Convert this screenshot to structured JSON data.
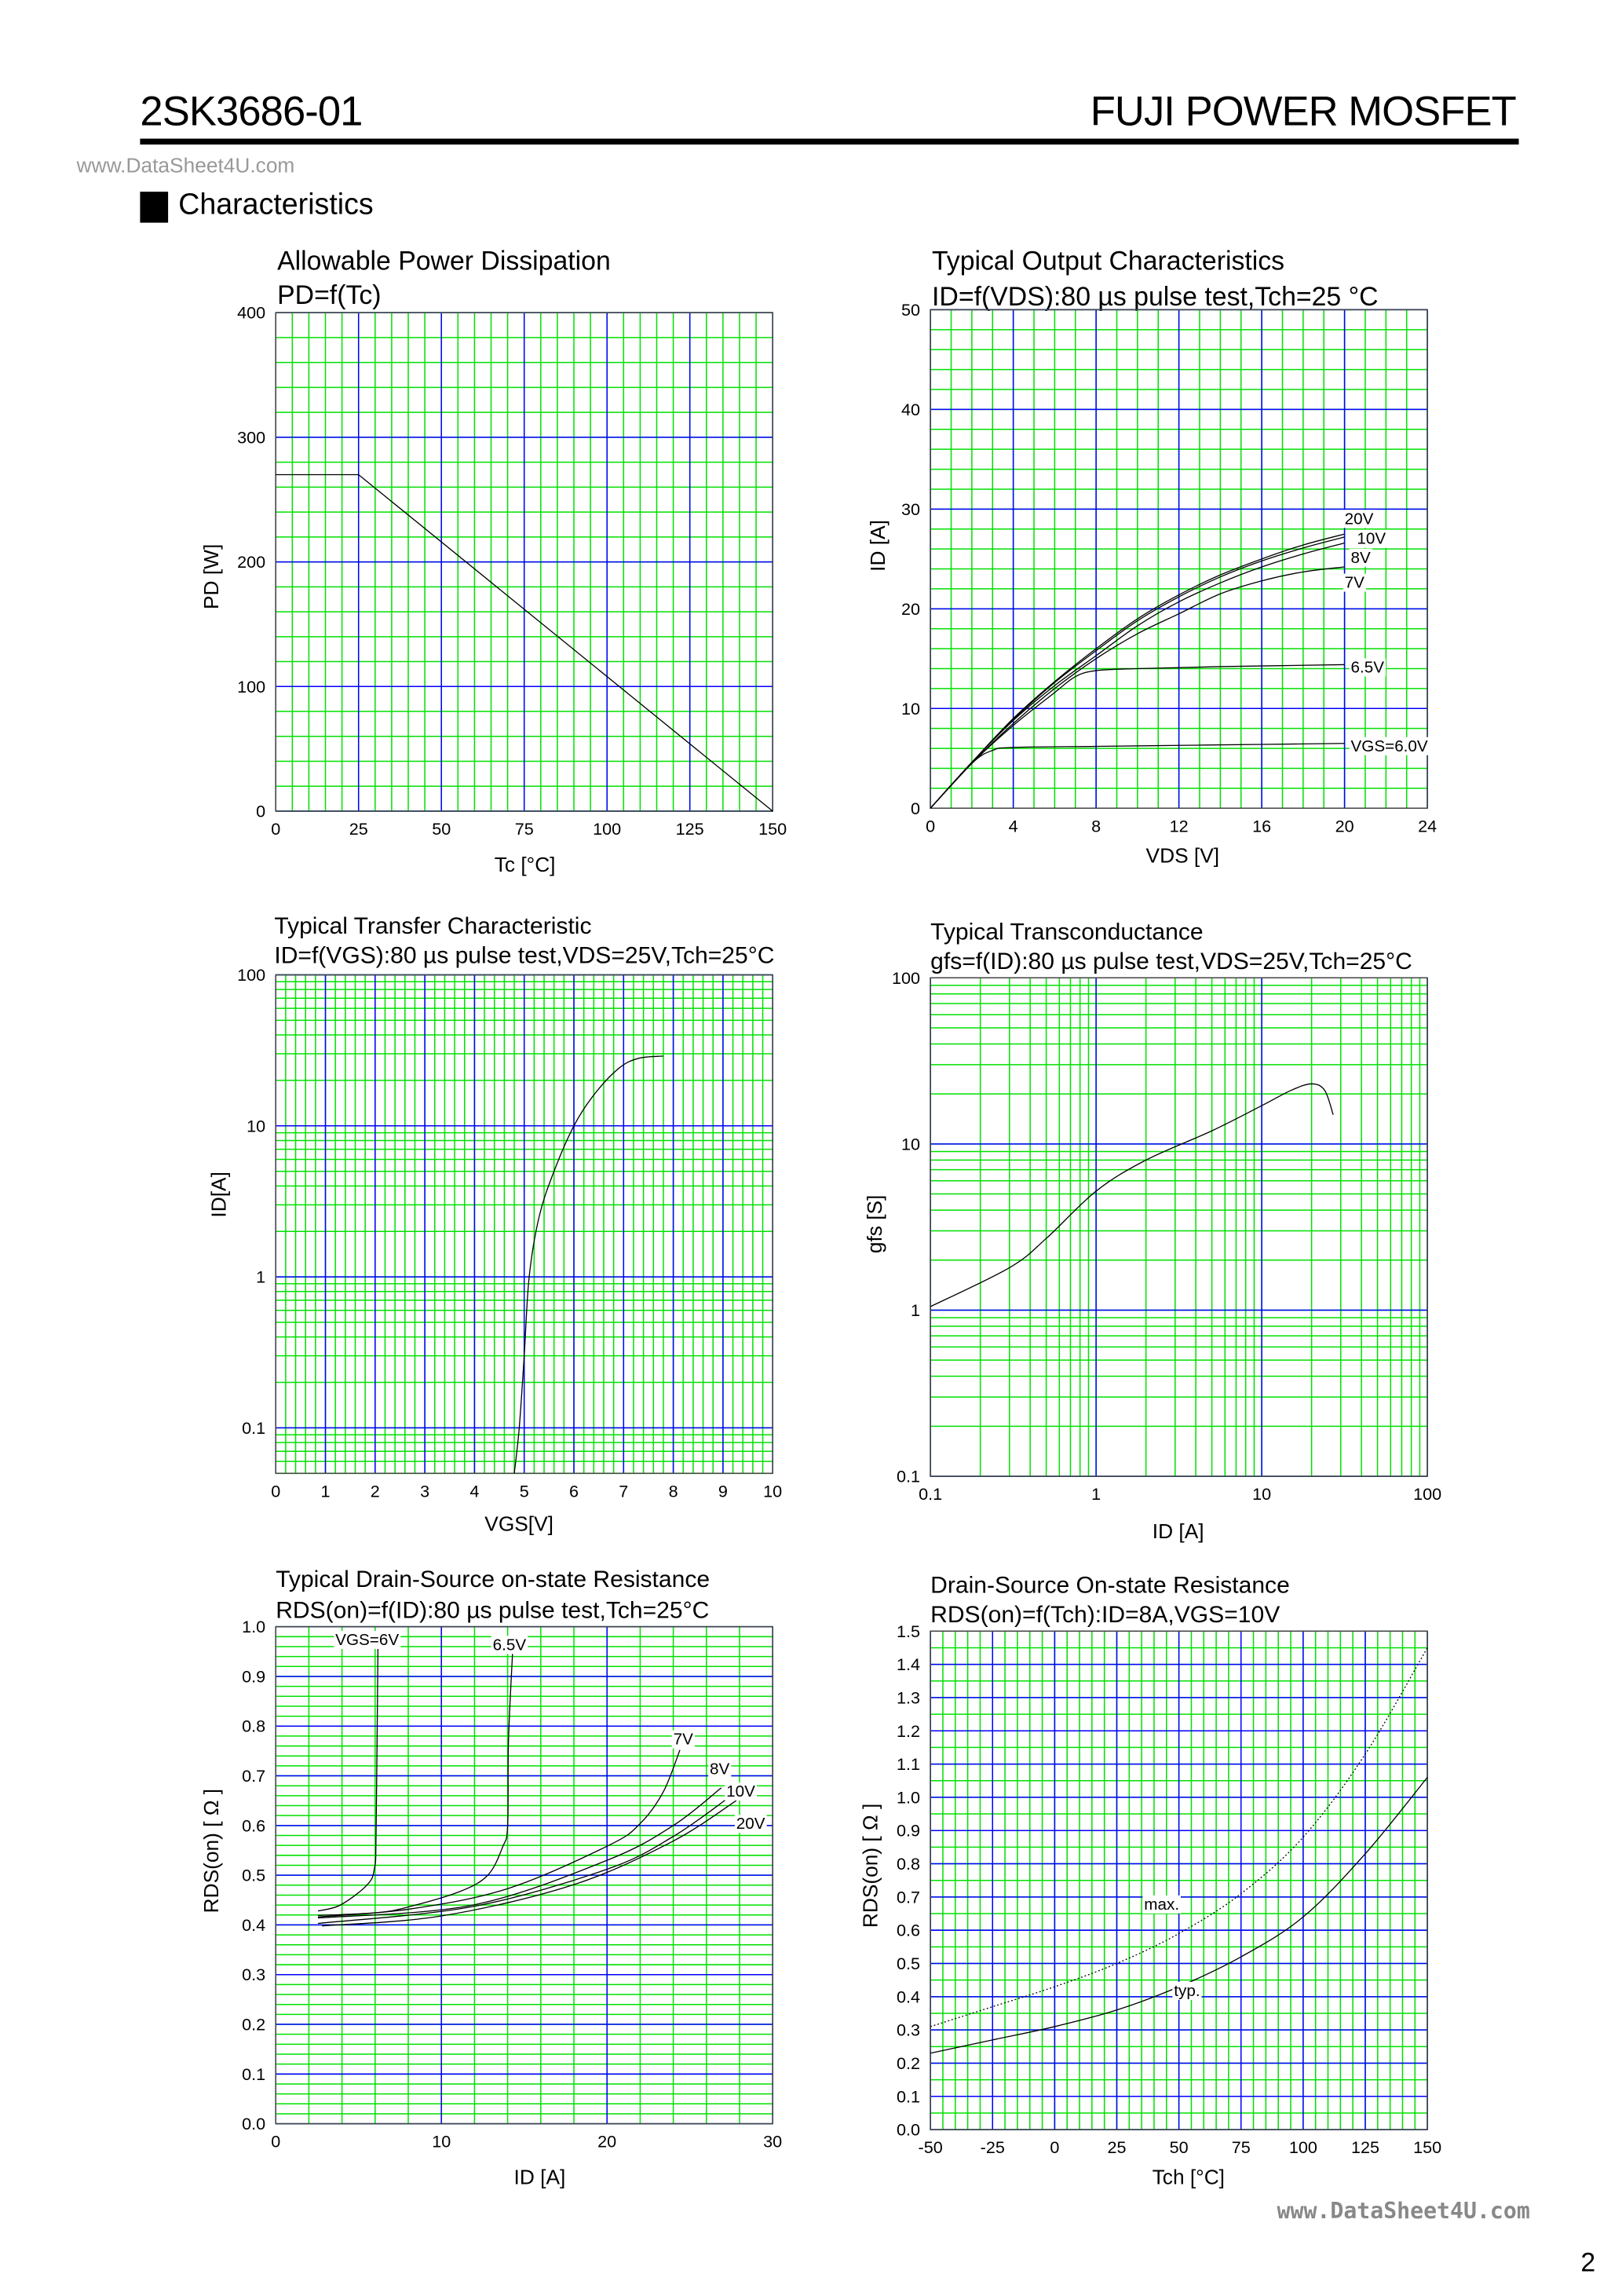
{
  "header": {
    "part_number": "2SK3686-01",
    "brand": "FUJI POWER MOSFET",
    "watermark_top": "www.DataSheet4U.com",
    "section": "Characteristics",
    "watermark_bottom": "www.DataSheet4U.com",
    "page_number": "2"
  },
  "colors": {
    "major_grid": "#0000ff",
    "minor_grid": "#00e000",
    "curve": "#000000"
  },
  "chart_data": [
    {
      "type": "line",
      "title": "Allowable Power Dissipation",
      "subtitle": "PD=f(Tc)",
      "xlabel": "Tc [°C]",
      "ylabel": "PD [W]",
      "xscale": "linear",
      "yscale": "linear",
      "xlim": [
        0,
        150
      ],
      "ylim": [
        0,
        400
      ],
      "x_major": 25,
      "x_minor": 5,
      "y_major": 100,
      "y_minor": 20,
      "xticks": [
        0,
        25,
        50,
        75,
        100,
        125,
        150
      ],
      "xtick_labels": [
        "0",
        "25",
        "50",
        "75",
        "100",
        "125",
        "150"
      ],
      "yticks": [
        0,
        100,
        200,
        300,
        400
      ],
      "ytick_labels": [
        "0",
        "100",
        "200",
        "300",
        "400"
      ],
      "series": [
        {
          "points": [
            [
              0,
              270
            ],
            [
              25,
              270
            ],
            [
              150,
              0
            ]
          ]
        }
      ]
    },
    {
      "type": "line",
      "title": "Typical Output Characteristics",
      "subtitle": "ID=f(VDS):80 µs pulse test,Tch=25 °C",
      "xlabel": "VDS [V]",
      "ylabel": "ID [A]",
      "xscale": "linear",
      "yscale": "linear",
      "xlim": [
        0,
        24
      ],
      "ylim": [
        0,
        50
      ],
      "x_major": 4,
      "x_minor": 1,
      "y_major": 10,
      "y_minor": 2,
      "xticks": [
        0,
        4,
        8,
        12,
        16,
        20,
        24
      ],
      "xtick_labels": [
        "0",
        "4",
        "8",
        "12",
        "16",
        "20",
        "24"
      ],
      "yticks": [
        0,
        10,
        20,
        30,
        40,
        50
      ],
      "ytick_labels": [
        "0",
        "10",
        "20",
        "30",
        "40",
        "50"
      ],
      "series": [
        {
          "name": "VGS=6.0V",
          "label_at": [
            20.3,
            6.3
          ],
          "points": [
            [
              0,
              0
            ],
            [
              2,
              4.5
            ],
            [
              3,
              5.8
            ],
            [
              4,
              6.1
            ],
            [
              8,
              6.2
            ],
            [
              12,
              6.3
            ],
            [
              16,
              6.4
            ],
            [
              20,
              6.5
            ]
          ]
        },
        {
          "name": "6.5V",
          "label_at": [
            20.3,
            14.2
          ],
          "points": [
            [
              0,
              0
            ],
            [
              2,
              4.5
            ],
            [
              4,
              8.3
            ],
            [
              6,
              11.6
            ],
            [
              7,
              13.2
            ],
            [
              8,
              13.8
            ],
            [
              10,
              14.0
            ],
            [
              14,
              14.2
            ],
            [
              20,
              14.4
            ]
          ]
        },
        {
          "name": "7V",
          "label_at": [
            20.0,
            22.7
          ],
          "points": [
            [
              0,
              0
            ],
            [
              2,
              4.5
            ],
            [
              4,
              8.5
            ],
            [
              6,
              12
            ],
            [
              8,
              15
            ],
            [
              10,
              17.5
            ],
            [
              12,
              19.5
            ],
            [
              14,
              21.5
            ],
            [
              16,
              22.8
            ],
            [
              18,
              23.7
            ],
            [
              20,
              24.2
            ]
          ]
        },
        {
          "name": "8V",
          "label_at": [
            20.3,
            25.2
          ],
          "points": [
            [
              0,
              0
            ],
            [
              2,
              4.6
            ],
            [
              4,
              8.8
            ],
            [
              6,
              12.3
            ],
            [
              8,
              15.3
            ],
            [
              10,
              18.3
            ],
            [
              12,
              20.7
            ],
            [
              14,
              22.6
            ],
            [
              16,
              24.2
            ],
            [
              18,
              25.5
            ],
            [
              20,
              26.6
            ]
          ]
        },
        {
          "name": "10V",
          "label_at": [
            20.6,
            27.1
          ],
          "points": [
            [
              0,
              0
            ],
            [
              2,
              4.6
            ],
            [
              4,
              8.9
            ],
            [
              6,
              12.6
            ],
            [
              8,
              15.8
            ],
            [
              10,
              18.8
            ],
            [
              12,
              21.2
            ],
            [
              14,
              23.2
            ],
            [
              16,
              24.8
            ],
            [
              18,
              26.1
            ],
            [
              20,
              27.2
            ]
          ]
        },
        {
          "name": "20V",
          "label_at": [
            20.0,
            29.1
          ],
          "points": [
            [
              0,
              0
            ],
            [
              2,
              4.6
            ],
            [
              4,
              9.0
            ],
            [
              6,
              12.7
            ],
            [
              8,
              16.0
            ],
            [
              10,
              19.0
            ],
            [
              12,
              21.4
            ],
            [
              14,
              23.4
            ],
            [
              16,
              25.0
            ],
            [
              18,
              26.4
            ],
            [
              20,
              27.5
            ]
          ]
        }
      ]
    },
    {
      "type": "line",
      "title": "Typical Transfer Characteristic",
      "subtitle": "ID=f(VGS):80 µs pulse test,VDS=25V,Tch=25°C",
      "xlabel": "VGS[V]",
      "ylabel": "ID[A]",
      "xscale": "linear",
      "yscale": "log",
      "xlim": [
        0,
        10
      ],
      "ylim": [
        0.05,
        100
      ],
      "x_major": 1,
      "x_minor": 0.2,
      "xticks": [
        0,
        1,
        2,
        3,
        4,
        5,
        6,
        7,
        8,
        9,
        10
      ],
      "xtick_labels": [
        "0",
        "1",
        "2",
        "3",
        "4",
        "5",
        "6",
        "7",
        "8",
        "9",
        "10"
      ],
      "yticks": [
        0.1,
        1,
        10,
        100
      ],
      "ytick_labels": [
        "0.1",
        "1",
        "10",
        "100"
      ],
      "series": [
        {
          "points": [
            [
              4.8,
              0.05
            ],
            [
              4.9,
              0.1
            ],
            [
              5.0,
              0.3
            ],
            [
              5.1,
              1
            ],
            [
              5.3,
              2.5
            ],
            [
              5.6,
              5
            ],
            [
              6.0,
              10
            ],
            [
              6.4,
              16
            ],
            [
              6.9,
              24
            ],
            [
              7.3,
              28
            ],
            [
              7.8,
              29
            ]
          ]
        }
      ]
    },
    {
      "type": "line",
      "title": "Typical Transconductance",
      "subtitle": "gfs=f(ID):80 µs pulse test,VDS=25V,Tch=25°C",
      "xlabel": "ID [A]",
      "ylabel": "gfs [S]",
      "xscale": "log",
      "yscale": "log",
      "xlim": [
        0.1,
        100
      ],
      "ylim": [
        0.1,
        100
      ],
      "xticks": [
        0.1,
        1,
        10,
        100
      ],
      "xtick_labels": [
        "0.1",
        "1",
        "10",
        "100"
      ],
      "yticks": [
        0.1,
        1,
        10,
        100
      ],
      "ytick_labels": [
        "0.1",
        "1",
        "10",
        "100"
      ],
      "series": [
        {
          "points": [
            [
              0.1,
              1.05
            ],
            [
              0.3,
              1.8
            ],
            [
              0.5,
              2.7
            ],
            [
              1,
              5.2
            ],
            [
              2,
              8
            ],
            [
              5,
              12
            ],
            [
              10,
              17
            ],
            [
              15,
              21
            ],
            [
              20,
              23
            ],
            [
              24,
              21
            ],
            [
              27,
              15
            ]
          ]
        }
      ]
    },
    {
      "type": "line",
      "title": "Typical Drain-Source on-state Resistance",
      "subtitle": "RDS(on)=f(ID):80  µs pulse test,Tch=25°C",
      "xlabel": "ID [A]",
      "ylabel": "RDS(on) [ Ω ]",
      "xscale": "linear",
      "yscale": "linear",
      "xlim": [
        0,
        30
      ],
      "ylim": [
        0,
        1.0
      ],
      "x_major": 10,
      "x_minor": 2,
      "y_major": 0.1,
      "y_minor": 0.02,
      "xticks": [
        0,
        10,
        20,
        30
      ],
      "xtick_labels": [
        "0",
        "10",
        "20",
        "30"
      ],
      "yticks": [
        0,
        0.1,
        0.2,
        0.3,
        0.4,
        0.5,
        0.6,
        0.7,
        0.8,
        0.9,
        1.0
      ],
      "ytick_labels": [
        "0.0",
        "0.1",
        "0.2",
        "0.3",
        "0.4",
        "0.5",
        "0.6",
        "0.7",
        "0.8",
        "0.9",
        "1.0"
      ],
      "series": [
        {
          "name": "VGS=6V",
          "label_at": [
            3.6,
            0.975
          ],
          "points": [
            [
              2.55,
              0.428
            ],
            [
              3.9,
              0.44
            ],
            [
              5.5,
              0.48
            ],
            [
              5.96,
              0.514
            ],
            [
              6.06,
              0.59
            ],
            [
              6.17,
              0.96
            ]
          ]
        },
        {
          "name": "6.5V",
          "label_at": [
            13.1,
            0.965
          ],
          "points": [
            [
              2.55,
              0.419
            ],
            [
              6.2,
              0.425
            ],
            [
              8.1,
              0.437
            ],
            [
              11.1,
              0.467
            ],
            [
              12.8,
              0.5
            ],
            [
              13.7,
              0.557
            ],
            [
              14.0,
              0.6
            ],
            [
              14.05,
              0.77
            ],
            [
              14.3,
              0.95
            ]
          ]
        },
        {
          "name": "7V",
          "label_at": [
            24.0,
            0.775
          ],
          "points": [
            [
              2.55,
              0.416
            ],
            [
              8.1,
              0.432
            ],
            [
              14.0,
              0.473
            ],
            [
              20.1,
              0.56
            ],
            [
              22.0,
              0.604
            ],
            [
              23.4,
              0.668
            ],
            [
              24.4,
              0.752
            ]
          ]
        },
        {
          "name": "8V",
          "label_at": [
            26.2,
            0.715
          ],
          "points": [
            [
              2.55,
              0.414
            ],
            [
              11.9,
              0.44
            ],
            [
              20,
              0.53
            ],
            [
              24,
              0.6
            ],
            [
              26.9,
              0.676
            ]
          ]
        },
        {
          "name": "10V",
          "label_at": [
            27.2,
            0.67
          ],
          "points": [
            [
              2.55,
              0.403
            ],
            [
              11.9,
              0.437
            ],
            [
              20,
              0.512
            ],
            [
              24,
              0.578
            ],
            [
              27.3,
              0.655
            ]
          ]
        },
        {
          "name": "20V",
          "label_at": [
            27.8,
            0.605
          ],
          "points": [
            [
              2.8,
              0.398
            ],
            [
              10,
              0.418
            ],
            [
              17.9,
              0.48
            ],
            [
              23.9,
              0.567
            ],
            [
              27.8,
              0.65
            ]
          ]
        }
      ]
    },
    {
      "type": "line",
      "title": "Drain-Source On-state Resistance",
      "subtitle": "RDS(on)=f(Tch):ID=8A,VGS=10V",
      "xlabel": "Tch [°C]",
      "ylabel": "RDS(on) [ Ω ]",
      "xscale": "linear",
      "yscale": "linear",
      "xlim": [
        -50,
        150
      ],
      "ylim": [
        0,
        1.5
      ],
      "x_major": 25,
      "x_minor": 5,
      "y_major": 0.1,
      "y_minor": 0.05,
      "xticks": [
        -50,
        -25,
        0,
        25,
        50,
        75,
        100,
        125,
        150
      ],
      "xtick_labels": [
        "-50",
        "-25",
        "0",
        "25",
        "50",
        "75",
        "100",
        "125",
        "150"
      ],
      "yticks": [
        0,
        0.1,
        0.2,
        0.3,
        0.4,
        0.5,
        0.6,
        0.7,
        0.8,
        0.9,
        1.0,
        1.1,
        1.2,
        1.3,
        1.4,
        1.5
      ],
      "ytick_labels": [
        "0.0",
        "0.1",
        "0.2",
        "0.3",
        "0.4",
        "0.5",
        "0.6",
        "0.7",
        "0.8",
        "0.9",
        "1.0",
        "1.1",
        "1.2",
        "1.3",
        "1.4",
        "1.5"
      ],
      "series": [
        {
          "name": "max.",
          "dashed": true,
          "label_at": [
            36,
            0.68
          ],
          "points": [
            [
              -50,
              0.31
            ],
            [
              -25,
              0.37
            ],
            [
              0,
              0.43
            ],
            [
              25,
              0.5
            ],
            [
              50,
              0.59
            ],
            [
              75,
              0.71
            ],
            [
              100,
              0.88
            ],
            [
              125,
              1.13
            ],
            [
              150,
              1.45
            ]
          ]
        },
        {
          "name": "typ.",
          "label_at": [
            48,
            0.42
          ],
          "points": [
            [
              -50,
              0.23
            ],
            [
              -25,
              0.27
            ],
            [
              0,
              0.31
            ],
            [
              25,
              0.36
            ],
            [
              50,
              0.43
            ],
            [
              75,
              0.52
            ],
            [
              100,
              0.64
            ],
            [
              125,
              0.83
            ],
            [
              150,
              1.06
            ]
          ]
        }
      ]
    }
  ]
}
